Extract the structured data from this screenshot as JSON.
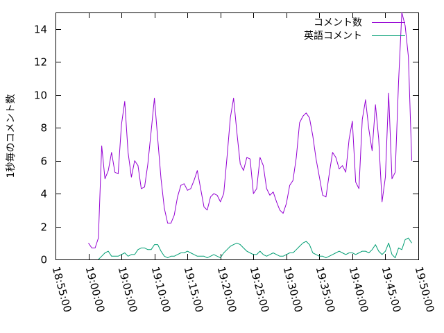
{
  "chart_data": {
    "type": "line",
    "title": "",
    "xlabel": "",
    "ylabel": "1秒毎のコメント数",
    "xlim": [
      "18:55:00",
      "19:50:00"
    ],
    "ylim": [
      0,
      15
    ],
    "x_ticks": [
      "18:55:00",
      "19:00:00",
      "19:05:00",
      "19:10:00",
      "19:15:00",
      "19:20:00",
      "19:25:00",
      "19:30:00",
      "19:35:00",
      "19:40:00",
      "19:45:00",
      "19:50:00"
    ],
    "y_ticks": [
      0,
      2,
      4,
      6,
      8,
      10,
      12,
      14
    ],
    "grid": false,
    "legend_position": "top-right",
    "series": [
      {
        "name": "コメント数",
        "color": "#9400d3",
        "points": [
          [
            "19:00:00",
            1.0
          ],
          [
            "19:00:30",
            0.7
          ],
          [
            "19:01:00",
            0.7
          ],
          [
            "19:01:30",
            1.3
          ],
          [
            "19:02:00",
            6.9
          ],
          [
            "19:02:30",
            4.9
          ],
          [
            "19:03:00",
            5.4
          ],
          [
            "19:03:30",
            6.5
          ],
          [
            "19:04:00",
            5.3
          ],
          [
            "19:04:30",
            5.2
          ],
          [
            "19:05:00",
            8.2
          ],
          [
            "19:05:30",
            9.6
          ],
          [
            "19:06:00",
            6.5
          ],
          [
            "19:06:30",
            5.0
          ],
          [
            "19:07:00",
            6.0
          ],
          [
            "19:07:30",
            5.7
          ],
          [
            "19:08:00",
            4.3
          ],
          [
            "19:08:30",
            4.4
          ],
          [
            "19:09:00",
            5.8
          ],
          [
            "19:09:30",
            7.8
          ],
          [
            "19:10:00",
            9.8
          ],
          [
            "19:10:30",
            7.3
          ],
          [
            "19:11:00",
            4.9
          ],
          [
            "19:11:30",
            3.1
          ],
          [
            "19:12:00",
            2.2
          ],
          [
            "19:12:30",
            2.2
          ],
          [
            "19:13:00",
            2.7
          ],
          [
            "19:13:30",
            3.8
          ],
          [
            "19:14:00",
            4.5
          ],
          [
            "19:14:30",
            4.6
          ],
          [
            "19:15:00",
            4.2
          ],
          [
            "19:15:30",
            4.3
          ],
          [
            "19:16:00",
            4.8
          ],
          [
            "19:16:30",
            5.4
          ],
          [
            "19:17:00",
            4.3
          ],
          [
            "19:17:30",
            3.2
          ],
          [
            "19:18:00",
            3.0
          ],
          [
            "19:18:30",
            3.8
          ],
          [
            "19:19:00",
            4.0
          ],
          [
            "19:19:30",
            3.9
          ],
          [
            "19:20:00",
            3.5
          ],
          [
            "19:20:30",
            4.0
          ],
          [
            "19:21:00",
            6.2
          ],
          [
            "19:21:30",
            8.6
          ],
          [
            "19:22:00",
            9.8
          ],
          [
            "19:22:30",
            7.7
          ],
          [
            "19:23:00",
            5.8
          ],
          [
            "19:23:30",
            5.4
          ],
          [
            "19:24:00",
            6.2
          ],
          [
            "19:24:30",
            6.1
          ],
          [
            "19:25:00",
            4.0
          ],
          [
            "19:25:30",
            4.3
          ],
          [
            "19:26:00",
            6.2
          ],
          [
            "19:26:30",
            5.7
          ],
          [
            "19:27:00",
            4.3
          ],
          [
            "19:27:30",
            3.9
          ],
          [
            "19:28:00",
            4.1
          ],
          [
            "19:28:30",
            3.5
          ],
          [
            "19:29:00",
            3.0
          ],
          [
            "19:29:30",
            2.8
          ],
          [
            "19:30:00",
            3.4
          ],
          [
            "19:30:30",
            4.5
          ],
          [
            "19:31:00",
            4.8
          ],
          [
            "19:31:30",
            6.2
          ],
          [
            "19:32:00",
            8.3
          ],
          [
            "19:32:30",
            8.7
          ],
          [
            "19:33:00",
            8.9
          ],
          [
            "19:33:30",
            8.6
          ],
          [
            "19:34:00",
            7.5
          ],
          [
            "19:34:30",
            6.1
          ],
          [
            "19:35:00",
            5.0
          ],
          [
            "19:35:30",
            3.9
          ],
          [
            "19:36:00",
            3.8
          ],
          [
            "19:36:30",
            5.2
          ],
          [
            "19:37:00",
            6.5
          ],
          [
            "19:37:30",
            6.2
          ],
          [
            "19:38:00",
            5.5
          ],
          [
            "19:38:30",
            5.7
          ],
          [
            "19:39:00",
            5.3
          ],
          [
            "19:39:30",
            7.3
          ],
          [
            "19:40:00",
            8.4
          ],
          [
            "19:40:30",
            4.7
          ],
          [
            "19:41:00",
            4.3
          ],
          [
            "19:41:30",
            8.5
          ],
          [
            "19:42:00",
            9.7
          ],
          [
            "19:42:30",
            7.9
          ],
          [
            "19:43:00",
            6.6
          ],
          [
            "19:43:30",
            9.4
          ],
          [
            "19:44:00",
            7.3
          ],
          [
            "19:44:30",
            3.5
          ],
          [
            "19:45:00",
            5.0
          ],
          [
            "19:45:30",
            10.1
          ],
          [
            "19:46:00",
            4.9
          ],
          [
            "19:46:30",
            5.3
          ],
          [
            "19:47:00",
            10.8
          ],
          [
            "19:47:30",
            15.0
          ],
          [
            "19:48:00",
            14.2
          ],
          [
            "19:48:30",
            12.3
          ],
          [
            "19:49:00",
            6.0
          ]
        ]
      },
      {
        "name": "英語コメント",
        "color": "#009e73",
        "points": [
          [
            "19:01:30",
            0.0
          ],
          [
            "19:02:00",
            0.2
          ],
          [
            "19:02:30",
            0.4
          ],
          [
            "19:03:00",
            0.5
          ],
          [
            "19:03:30",
            0.2
          ],
          [
            "19:04:00",
            0.2
          ],
          [
            "19:04:30",
            0.2
          ],
          [
            "19:05:00",
            0.3
          ],
          [
            "19:05:30",
            0.4
          ],
          [
            "19:06:00",
            0.2
          ],
          [
            "19:06:30",
            0.3
          ],
          [
            "19:07:00",
            0.3
          ],
          [
            "19:07:30",
            0.6
          ],
          [
            "19:08:00",
            0.7
          ],
          [
            "19:08:30",
            0.7
          ],
          [
            "19:09:00",
            0.6
          ],
          [
            "19:09:30",
            0.6
          ],
          [
            "19:10:00",
            0.9
          ],
          [
            "19:10:30",
            0.9
          ],
          [
            "19:11:00",
            0.5
          ],
          [
            "19:11:30",
            0.2
          ],
          [
            "19:12:00",
            0.1
          ],
          [
            "19:12:30",
            0.2
          ],
          [
            "19:13:00",
            0.2
          ],
          [
            "19:13:30",
            0.3
          ],
          [
            "19:14:00",
            0.4
          ],
          [
            "19:14:30",
            0.4
          ],
          [
            "19:15:00",
            0.5
          ],
          [
            "19:15:30",
            0.4
          ],
          [
            "19:16:00",
            0.3
          ],
          [
            "19:16:30",
            0.2
          ],
          [
            "19:17:00",
            0.2
          ],
          [
            "19:17:30",
            0.2
          ],
          [
            "19:18:00",
            0.1
          ],
          [
            "19:18:30",
            0.2
          ],
          [
            "19:19:00",
            0.3
          ],
          [
            "19:19:30",
            0.2
          ],
          [
            "19:20:00",
            0.1
          ],
          [
            "19:20:30",
            0.4
          ],
          [
            "19:21:00",
            0.6
          ],
          [
            "19:21:30",
            0.8
          ],
          [
            "19:22:00",
            0.9
          ],
          [
            "19:22:30",
            1.0
          ],
          [
            "19:23:00",
            0.9
          ],
          [
            "19:23:30",
            0.7
          ],
          [
            "19:24:00",
            0.5
          ],
          [
            "19:24:30",
            0.4
          ],
          [
            "19:25:00",
            0.3
          ],
          [
            "19:25:30",
            0.3
          ],
          [
            "19:26:00",
            0.5
          ],
          [
            "19:26:30",
            0.3
          ],
          [
            "19:27:00",
            0.2
          ],
          [
            "19:27:30",
            0.3
          ],
          [
            "19:28:00",
            0.4
          ],
          [
            "19:28:30",
            0.3
          ],
          [
            "19:29:00",
            0.2
          ],
          [
            "19:29:30",
            0.2
          ],
          [
            "19:30:00",
            0.3
          ],
          [
            "19:30:30",
            0.4
          ],
          [
            "19:31:00",
            0.4
          ],
          [
            "19:31:30",
            0.6
          ],
          [
            "19:32:00",
            0.8
          ],
          [
            "19:32:30",
            1.0
          ],
          [
            "19:33:00",
            1.1
          ],
          [
            "19:33:30",
            0.9
          ],
          [
            "19:34:00",
            0.4
          ],
          [
            "19:34:30",
            0.3
          ],
          [
            "19:35:00",
            0.2
          ],
          [
            "19:35:30",
            0.2
          ],
          [
            "19:36:00",
            0.1
          ],
          [
            "19:36:30",
            0.2
          ],
          [
            "19:37:00",
            0.3
          ],
          [
            "19:37:30",
            0.4
          ],
          [
            "19:38:00",
            0.5
          ],
          [
            "19:38:30",
            0.4
          ],
          [
            "19:39:00",
            0.3
          ],
          [
            "19:39:30",
            0.4
          ],
          [
            "19:40:00",
            0.4
          ],
          [
            "19:40:30",
            0.3
          ],
          [
            "19:41:00",
            0.4
          ],
          [
            "19:41:30",
            0.5
          ],
          [
            "19:42:00",
            0.5
          ],
          [
            "19:42:30",
            0.4
          ],
          [
            "19:43:00",
            0.6
          ],
          [
            "19:43:30",
            0.9
          ],
          [
            "19:44:00",
            0.5
          ],
          [
            "19:44:30",
            0.3
          ],
          [
            "19:45:00",
            0.5
          ],
          [
            "19:45:30",
            1.0
          ],
          [
            "19:46:00",
            0.3
          ],
          [
            "19:46:30",
            0.1
          ],
          [
            "19:47:00",
            0.7
          ],
          [
            "19:47:30",
            0.6
          ],
          [
            "19:48:00",
            1.2
          ],
          [
            "19:48:30",
            1.3
          ],
          [
            "19:49:00",
            1.0
          ]
        ]
      }
    ]
  }
}
